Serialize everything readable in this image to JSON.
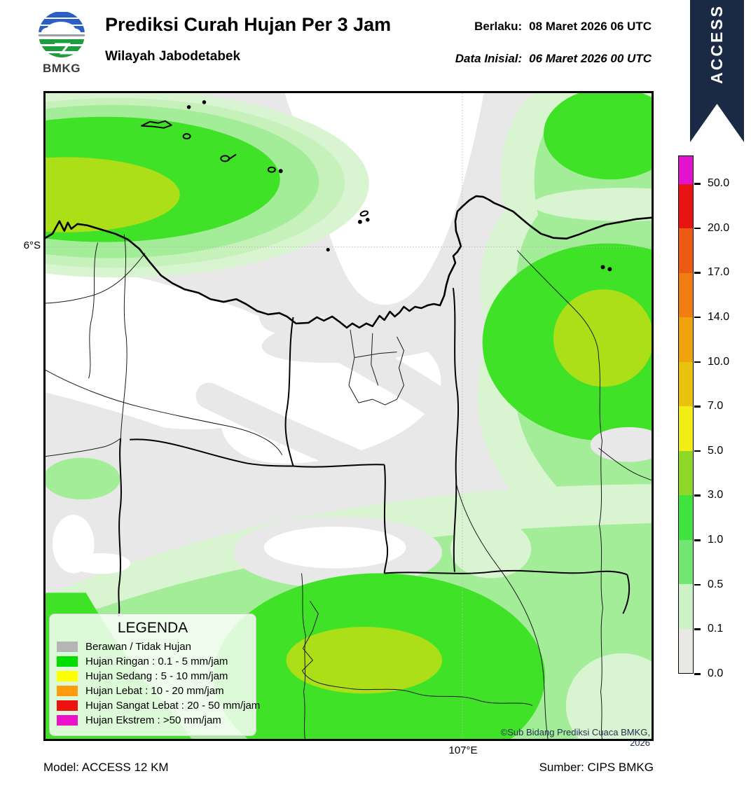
{
  "header": {
    "logo_text": "BMKG",
    "title": "Prediksi Curah Hujan Per 3 Jam",
    "subtitle": "Wilayah Jabodetabek",
    "valid_label": "Berlaku:",
    "valid_value": "08 Maret 2026 06 UTC",
    "init_label": "Data Inisial:",
    "init_value": "06 Maret 2026 00 UTC"
  },
  "banner": {
    "text": "ACCESS",
    "color": "#1b2a44"
  },
  "map": {
    "lat_label": "6°S",
    "lon_label": "107°E",
    "copyright": "©Sub Bidang Prediksi Cuaca BMKG, 2026",
    "palette": {
      "cloudy_gray": "#e8e8e8",
      "rain_0_1_to_0_5": "#d9f4d1",
      "rain_0_5_to_1": "#a3ec98",
      "rain_1_to_3": "#3fe226",
      "rain_3_to_5": "#addf19"
    }
  },
  "legend": {
    "title": "LEGENDA",
    "items": [
      {
        "color": "#b5b5b5",
        "label": "Berawan / Tidak Hujan"
      },
      {
        "color": "#00dd00",
        "label": "Hujan Ringan : 0.1 - 5 mm/jam"
      },
      {
        "color": "#ffff00",
        "label": "Hujan Sedang : 5 - 10 mm/jam"
      },
      {
        "color": "#ff9a0e",
        "label": "Hujan Lebat : 10 - 20 mm/jam"
      },
      {
        "color": "#ee1111",
        "label": "Hujan Sangat Lebat : 20 - 50 mm/jam"
      },
      {
        "color": "#ee11cc",
        "label": "Hujan Ekstrem : >50 mm/jam"
      }
    ]
  },
  "colorbar": {
    "tick_labels": [
      "50.0",
      "20.0",
      "17.0",
      "14.0",
      "10.0",
      "7.0",
      "5.0",
      "3.0",
      "1.0",
      "0.5",
      "0.1",
      "0.0"
    ],
    "segment_colors": [
      "#e312cf",
      "#e81414",
      "#ec5a14",
      "#f07d11",
      "#efa30d",
      "#e9c20e",
      "#f1ee15",
      "#8fd827",
      "#3fe23f",
      "#72e672",
      "#cdf2c6",
      "#e8e8e5"
    ]
  },
  "footer": {
    "model_label": "Model: ACCESS 12 KM",
    "source_label": "Sumber: CIPS BMKG"
  }
}
